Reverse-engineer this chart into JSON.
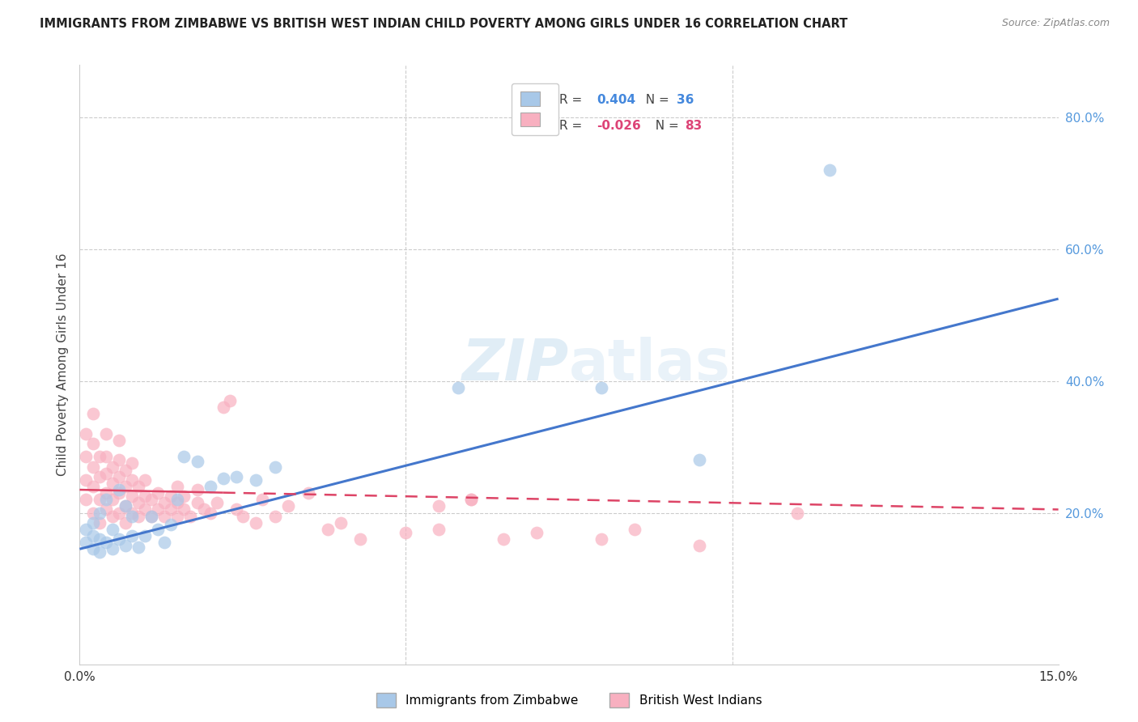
{
  "title": "IMMIGRANTS FROM ZIMBABWE VS BRITISH WEST INDIAN CHILD POVERTY AMONG GIRLS UNDER 16 CORRELATION CHART",
  "source": "Source: ZipAtlas.com",
  "ylabel": "Child Poverty Among Girls Under 16",
  "ylabel_right_ticks": [
    "80.0%",
    "60.0%",
    "40.0%",
    "20.0%"
  ],
  "ylabel_right_values": [
    0.8,
    0.6,
    0.4,
    0.2
  ],
  "xlim": [
    0.0,
    0.15
  ],
  "ylim": [
    -0.03,
    0.88
  ],
  "color_zimbabwe": "#a8c8e8",
  "color_bwi": "#f8b0c0",
  "line_color_zimbabwe": "#4477cc",
  "line_color_bwi": "#dd4466",
  "background_color": "#ffffff",
  "grid_color": "#cccccc",
  "zim_line_x0": 0.0,
  "zim_line_y0": 0.145,
  "zim_line_x1": 0.15,
  "zim_line_y1": 0.525,
  "bwi_line_solid_x0": 0.0,
  "bwi_line_solid_y0": 0.235,
  "bwi_line_solid_x1": 0.025,
  "bwi_line_solid_y1": 0.235,
  "bwi_line_dash_x0": 0.025,
  "bwi_line_dash_y0": 0.235,
  "bwi_line_dash_x1": 0.15,
  "bwi_line_dash_y1": 0.205,
  "zimbabwe_x": [
    0.001,
    0.001,
    0.002,
    0.002,
    0.002,
    0.003,
    0.003,
    0.003,
    0.004,
    0.004,
    0.005,
    0.005,
    0.006,
    0.006,
    0.007,
    0.007,
    0.008,
    0.008,
    0.009,
    0.01,
    0.011,
    0.012,
    0.013,
    0.014,
    0.015,
    0.016,
    0.018,
    0.02,
    0.022,
    0.024,
    0.027,
    0.03,
    0.058,
    0.08,
    0.095,
    0.115
  ],
  "zimbabwe_y": [
    0.155,
    0.175,
    0.145,
    0.165,
    0.185,
    0.14,
    0.16,
    0.2,
    0.155,
    0.22,
    0.145,
    0.175,
    0.16,
    0.235,
    0.15,
    0.21,
    0.165,
    0.195,
    0.148,
    0.165,
    0.195,
    0.175,
    0.155,
    0.182,
    0.22,
    0.285,
    0.278,
    0.24,
    0.252,
    0.255,
    0.25,
    0.27,
    0.39,
    0.39,
    0.28,
    0.72
  ],
  "bwi_x": [
    0.001,
    0.001,
    0.001,
    0.001,
    0.002,
    0.002,
    0.002,
    0.002,
    0.002,
    0.003,
    0.003,
    0.003,
    0.003,
    0.004,
    0.004,
    0.004,
    0.004,
    0.004,
    0.005,
    0.005,
    0.005,
    0.005,
    0.006,
    0.006,
    0.006,
    0.006,
    0.006,
    0.007,
    0.007,
    0.007,
    0.007,
    0.008,
    0.008,
    0.008,
    0.008,
    0.009,
    0.009,
    0.009,
    0.01,
    0.01,
    0.01,
    0.011,
    0.011,
    0.012,
    0.012,
    0.013,
    0.013,
    0.014,
    0.014,
    0.015,
    0.015,
    0.015,
    0.016,
    0.016,
    0.017,
    0.018,
    0.018,
    0.019,
    0.02,
    0.021,
    0.022,
    0.023,
    0.024,
    0.025,
    0.027,
    0.028,
    0.03,
    0.032,
    0.035,
    0.038,
    0.04,
    0.043,
    0.05,
    0.055,
    0.06,
    0.065,
    0.07,
    0.08,
    0.085,
    0.095,
    0.11,
    0.055,
    0.06
  ],
  "bwi_y": [
    0.22,
    0.25,
    0.285,
    0.32,
    0.2,
    0.24,
    0.27,
    0.305,
    0.35,
    0.185,
    0.22,
    0.255,
    0.285,
    0.205,
    0.23,
    0.26,
    0.285,
    0.32,
    0.195,
    0.22,
    0.245,
    0.27,
    0.2,
    0.23,
    0.255,
    0.28,
    0.31,
    0.185,
    0.21,
    0.24,
    0.265,
    0.2,
    0.225,
    0.25,
    0.275,
    0.195,
    0.215,
    0.24,
    0.205,
    0.225,
    0.25,
    0.195,
    0.22,
    0.205,
    0.23,
    0.195,
    0.215,
    0.205,
    0.225,
    0.195,
    0.215,
    0.24,
    0.205,
    0.225,
    0.195,
    0.215,
    0.235,
    0.205,
    0.2,
    0.215,
    0.36,
    0.37,
    0.205,
    0.195,
    0.185,
    0.22,
    0.195,
    0.21,
    0.23,
    0.175,
    0.185,
    0.16,
    0.17,
    0.175,
    0.22,
    0.16,
    0.17,
    0.16,
    0.175,
    0.15,
    0.2,
    0.21,
    0.22
  ]
}
